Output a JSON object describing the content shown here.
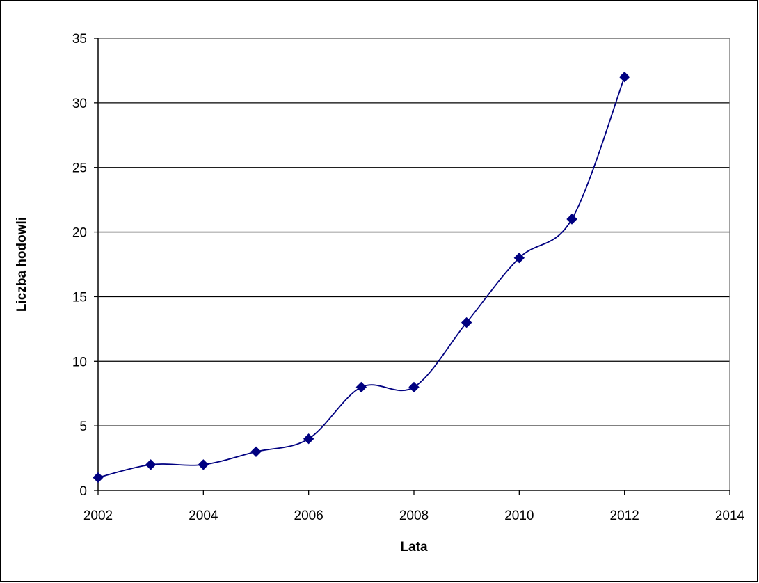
{
  "chart_data": {
    "type": "scatter",
    "title": "",
    "xlabel": "Lata",
    "ylabel": "Liczba hodowli",
    "xlim": [
      2002,
      2014
    ],
    "ylim": [
      0,
      35
    ],
    "x_ticks": [
      "2002",
      "2004",
      "2006",
      "2008",
      "2010",
      "2012",
      "2014"
    ],
    "y_ticks": [
      "0",
      "5",
      "10",
      "15",
      "20",
      "25",
      "30",
      "35"
    ],
    "grid": "horizontal major gridlines",
    "legend": "none",
    "smoothed_line": true,
    "series": [
      {
        "x": [
          2002,
          2003,
          2004,
          2005,
          2006,
          2007,
          2008,
          2009,
          2010,
          2011,
          2012
        ],
        "y": [
          1,
          2,
          2,
          3,
          4,
          8,
          8,
          13,
          18,
          21,
          32
        ],
        "color": "#000080",
        "marker": "diamond"
      }
    ]
  }
}
